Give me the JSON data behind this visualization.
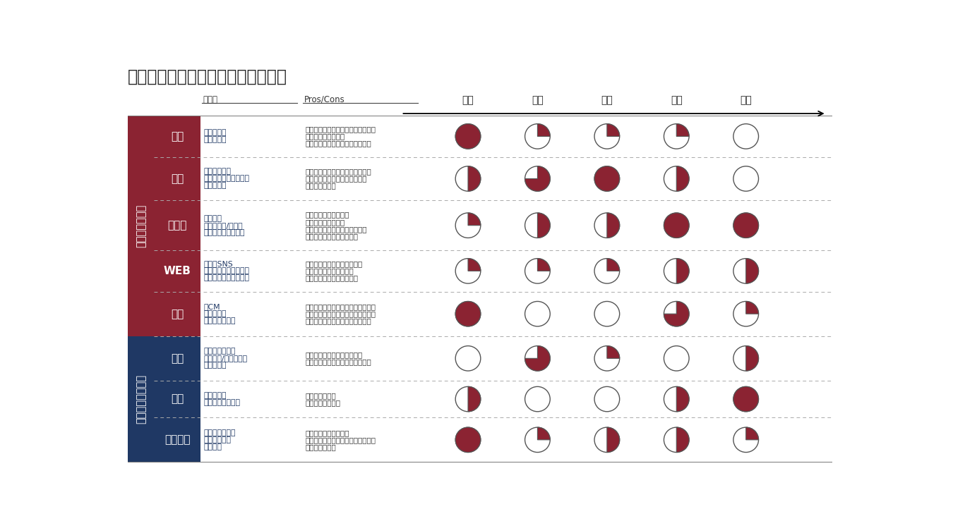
{
  "title": "浸透フェーズごとの施策の効果度合",
  "emotional_color": "#8B2332",
  "functional_color": "#1F3864",
  "emotional_label": "エモーショナル",
  "functional_label": "ファンクショナル",
  "row_labels": [
    "講話",
    "映像",
    "印刷物",
    "WEB",
    "広告",
    "研修",
    "制度",
    "イベント"
  ],
  "col_labels": [
    "認知",
    "理解",
    "共感",
    "行動",
    "定着"
  ],
  "sakurei_header": "施策例",
  "proscons_header": "Pros/Cons",
  "sakurei": [
    "・年頭挨拶\n・全社朝会",
    "・ヒストリー\n・模範社員エピソード\n・ビジョン",
    "・社内報\n・理念冊子/カード\n・理念ストーリー本",
    "・社内SNS\n・社員情報共有サイト\n・コーポレートサイト",
    "・CM\n・新聞広告\n・雑誌記事広告",
    "・新入社員研修\n・管理職/一般職研修\n・幹部研修",
    "・評価制度\n・インセンティブ",
    "・周年イベント\n・キックオフ\n・表彰式"
  ],
  "proscons": [
    "・多くの社員に伝えることができる\n・想いを伝えやすい\n・聞き流されてしまうことがある",
    "・心と記憶に訴えることができる\n・深い理解と共感を生み出せる\n・一過性が高い",
    "・いつでも立ち戻れる\n・深い理解を促せる\n・行動にはすぐには繋がらない\n・見てくれないことがある",
    "・常に最新情報を発信できる\n・強制力を持たせられる\n・見てくれないことがある",
    "・社外との約束として強制力がある\n・社内に浸透せずに発信した場合顧\n客からの信頼を失う可能性がある",
    "・行動を変える訓練ができる\n・聞き流されてしまうことがある",
    "・強制力が高い\n・心には響かない",
    "・一体感を醸成できる\n・モチベーションアップにつながる\n・一過性が高い"
  ],
  "pie_fills": [
    [
      1.0,
      0.25,
      0.25,
      0.25,
      0.0
    ],
    [
      0.5,
      0.75,
      1.0,
      0.5,
      0.0
    ],
    [
      0.25,
      0.5,
      0.5,
      1.0,
      1.0
    ],
    [
      0.25,
      0.25,
      0.25,
      0.5,
      0.5
    ],
    [
      1.0,
      0.0,
      0.0,
      0.75,
      0.25
    ],
    [
      0.0,
      0.75,
      0.25,
      0.0,
      0.5
    ],
    [
      0.5,
      0.0,
      0.0,
      0.5,
      1.0
    ],
    [
      1.0,
      0.25,
      0.5,
      0.5,
      0.25
    ]
  ],
  "emotional_rows": [
    0,
    1,
    2,
    3,
    4
  ],
  "functional_rows": [
    5,
    6,
    7
  ],
  "bg_color": "#FFFFFF",
  "pie_fill_color": "#8B2332",
  "pie_empty_color": "#FFFFFF",
  "pie_edge_color": "#555555",
  "text_color": "#333333",
  "sakurei_text_color": "#1F3864",
  "header_line_color": "#555555",
  "separator_color": "#AAAAAA"
}
